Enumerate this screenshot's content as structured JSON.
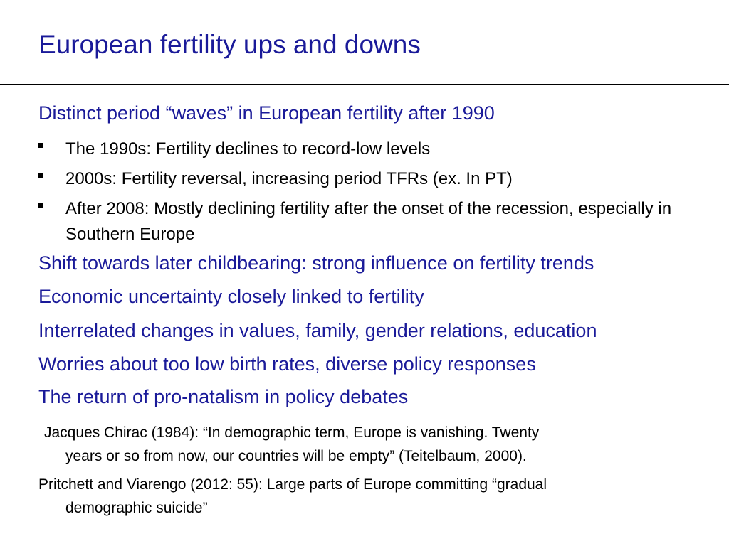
{
  "slide": {
    "title": "European fertility ups and downs"
  },
  "content": {
    "heading1": "Distinct period “waves” in European fertility after 1990",
    "bullets": [
      "The 1990s: Fertility declines to record-low levels",
      "2000s: Fertility reversal, increasing period TFRs (ex. In PT)",
      "After 2008: Mostly declining fertility after the onset of the recession, especially in Southern Europe"
    ],
    "points": [
      "Shift towards later childbearing: strong influence on fertility trends",
      "Economic uncertainty closely linked to fertility",
      "Interrelated changes in values, family, gender relations, education",
      "Worries about too low birth rates, diverse policy responses",
      "The return of pro-natalism in policy debates"
    ],
    "quotes": [
      {
        "line1": "Jacques Chirac (1984): “In demographic term, Europe is vanishing. Twenty",
        "line2": "years or so from now, our countries will be empty” (Teitelbaum, 2000)."
      },
      {
        "line1": "Pritchett and Viarengo (2012: 55): Large parts of Europe committing “gradual",
        "line2": "demographic suicide”"
      }
    ]
  },
  "colors": {
    "title": "#1a1a99",
    "body": "#000000",
    "background": "#ffffff"
  }
}
